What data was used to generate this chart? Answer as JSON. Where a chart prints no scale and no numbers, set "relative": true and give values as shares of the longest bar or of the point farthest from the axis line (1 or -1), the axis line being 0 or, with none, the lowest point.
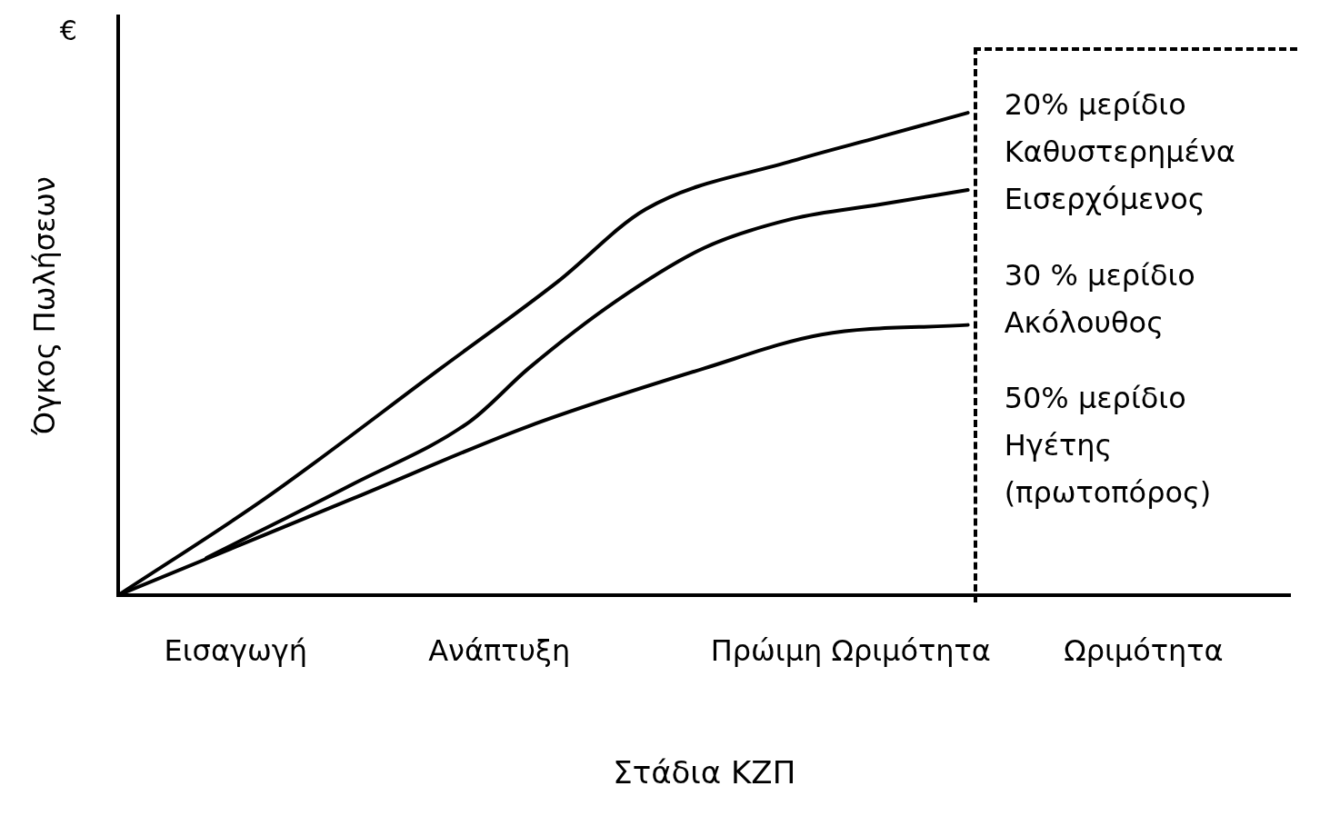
{
  "chart_data": {
    "type": "line",
    "relative": true,
    "xlabel": "Στάδια ΚΖΠ",
    "ylabel": "Όγκος Πωλήσεων",
    "categories": [
      null,
      null,
      null,
      null,
      "Εισαγωγή",
      null,
      null,
      null,
      null,
      null,
      null,
      null,
      null,
      "Ανάπτυξη",
      null,
      null,
      null,
      null,
      null,
      null,
      null,
      null,
      null,
      null,
      null,
      "Πρώιμη Ωριμότητα",
      null,
      null,
      null,
      null,
      null,
      null,
      null,
      null,
      null,
      "Ωριμότητα",
      null,
      null,
      null,
      null,
      null
    ],
    "series": [
      {
        "color": "#000000",
        "values": [
          0,
          null,
          null,
          null,
          null,
          0.2,
          null,
          null,
          null,
          null,
          null,
          0.47,
          null,
          null,
          null,
          0.65,
          null,
          null,
          0.8,
          null,
          null,
          null,
          null,
          0.9,
          null,
          null,
          0.95,
          null,
          null,
          1,
          null,
          null,
          null,
          null,
          null,
          null,
          null,
          null,
          null,
          null,
          null
        ]
      },
      {
        "color": "#000000",
        "values": [
          null,
          null,
          null,
          0.077,
          null,
          null,
          null,
          null,
          0.23,
          null,
          null,
          null,
          0.36,
          null,
          0.47,
          null,
          null,
          0.61,
          null,
          null,
          0.72,
          null,
          null,
          0.78,
          null,
          null,
          0.81,
          null,
          null,
          0.84,
          null,
          null,
          null,
          null,
          null,
          null,
          null,
          null,
          null,
          null,
          null
        ]
      },
      {
        "color": "#000000",
        "values": [
          0,
          null,
          null,
          null,
          null,
          null,
          null,
          null,
          0.2,
          null,
          null,
          null,
          null,
          null,
          0.35,
          null,
          null,
          null,
          null,
          null,
          0.47,
          null,
          null,
          null,
          0.54,
          null,
          null,
          null,
          null,
          0.56,
          null,
          null,
          null,
          null,
          null,
          null,
          null,
          null,
          null,
          null,
          null
        ]
      }
    ],
    "annotations": [
      "€",
      "20% μερίδιο",
      "Καθυστερημένα",
      "Εισερχόμενος",
      "30 % μερίδιο",
      "Ακόλουθος",
      "50% μερίδιο",
      "Ηγέτης",
      "(πρωτοπόρος)"
    ],
    "grid": false,
    "legend": false,
    "marker": "none",
    "line_style": "solid"
  }
}
